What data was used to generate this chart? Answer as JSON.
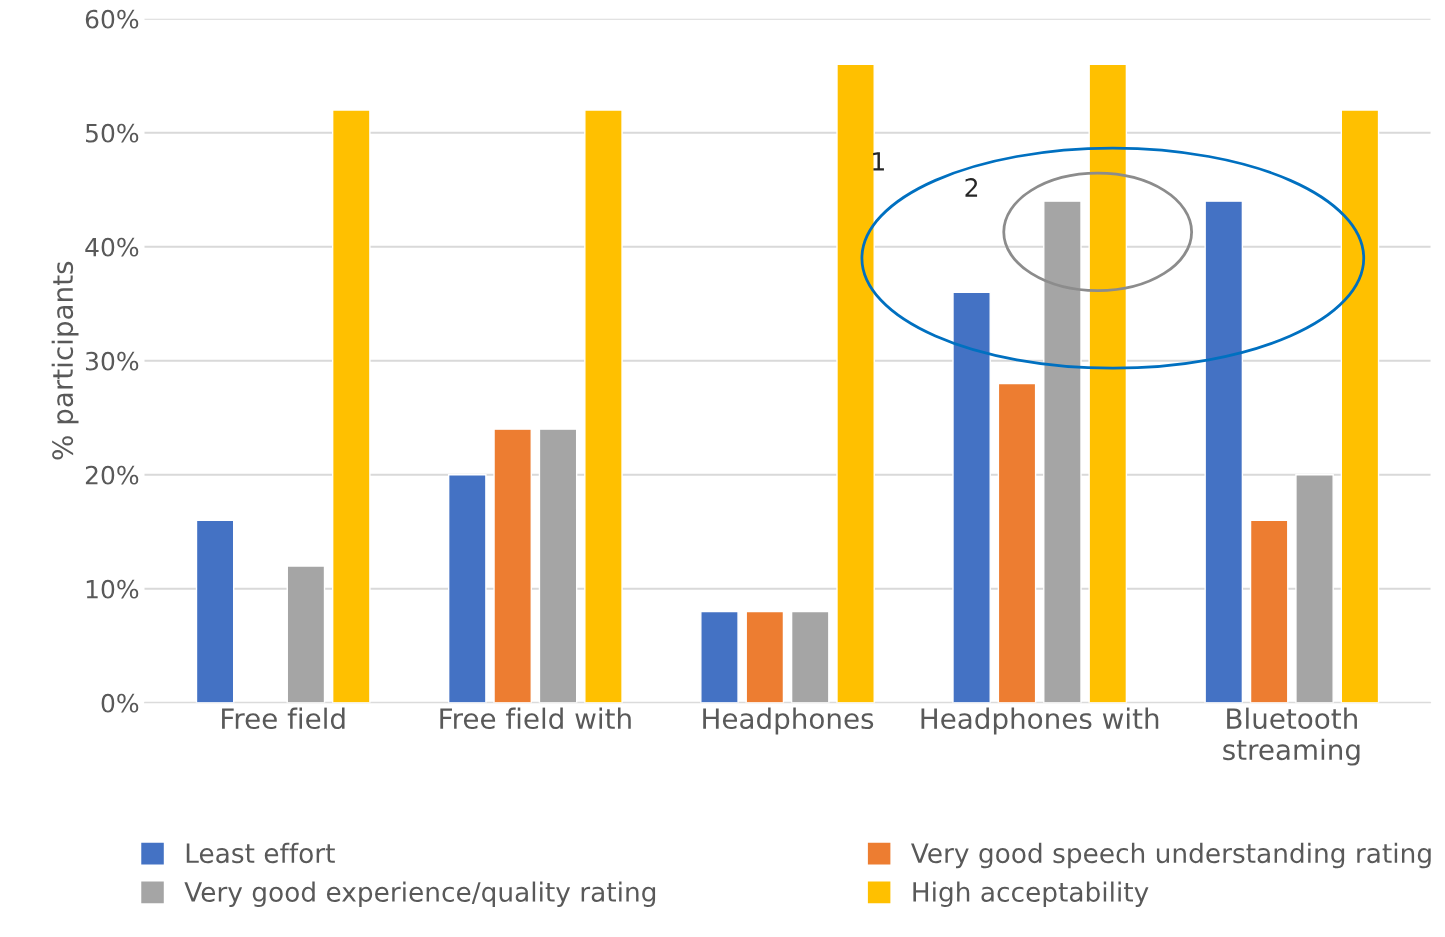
{
  "chart_data": {
    "type": "bar",
    "ylabel": "% participants",
    "categories": [
      "Free field",
      "Free field with",
      "Headphones",
      "Headphones with",
      "Bluetooth\nstreaming"
    ],
    "series": [
      {
        "name": "Least effort",
        "color": "#4472c4",
        "values": [
          16,
          20,
          8,
          36,
          44
        ]
      },
      {
        "name": "Very good speech understanding rating",
        "color": "#ed7d31",
        "values": [
          null,
          24,
          8,
          28,
          16
        ]
      },
      {
        "name": "Very good experience/quality rating",
        "color": "#a5a5a5",
        "values": [
          12,
          24,
          8,
          44,
          20
        ]
      },
      {
        "name": "High acceptability",
        "color": "#ffc000",
        "values": [
          52,
          52,
          56,
          56,
          52
        ]
      }
    ],
    "ylim": [
      0,
      60
    ],
    "yticks": [
      {
        "value": 0,
        "label": "0%"
      },
      {
        "value": 10,
        "label": "10%"
      },
      {
        "value": 20,
        "label": "20%"
      },
      {
        "value": 30,
        "label": "30%"
      },
      {
        "value": 40,
        "label": "40%"
      },
      {
        "value": 50,
        "label": "50%"
      },
      {
        "value": 60,
        "label": "60%"
      }
    ],
    "grid": "y",
    "legend": "bottom",
    "annotations": [
      "1",
      "2"
    ]
  }
}
